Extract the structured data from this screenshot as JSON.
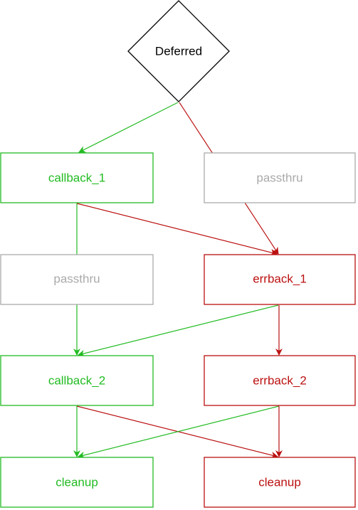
{
  "colors": {
    "success": "#22bb22",
    "error": "#bb1111",
    "inactive": "#aaaaaa",
    "neutral": "#000000",
    "background": "#ffffff"
  },
  "nodes": {
    "deferred": {
      "label": "Deferred"
    },
    "callback_1": {
      "label": "callback_1"
    },
    "passthru_right": {
      "label": "passthru"
    },
    "passthru_left": {
      "label": "passthru"
    },
    "errback_1": {
      "label": "errback_1"
    },
    "callback_2": {
      "label": "callback_2"
    },
    "errback_2": {
      "label": "errback_2"
    },
    "cleanup_left": {
      "label": "cleanup"
    },
    "cleanup_right": {
      "label": "cleanup"
    }
  },
  "edges": [
    {
      "from": "deferred",
      "to": "callback_1",
      "kind": "success"
    },
    {
      "from": "deferred",
      "to": "errback_1",
      "kind": "error"
    },
    {
      "from": "callback_1",
      "to": "callback_2",
      "kind": "success"
    },
    {
      "from": "callback_1",
      "to": "errback_1",
      "kind": "error"
    },
    {
      "from": "errback_1",
      "to": "callback_2",
      "kind": "success"
    },
    {
      "from": "errback_1",
      "to": "errback_2",
      "kind": "error"
    },
    {
      "from": "callback_2",
      "to": "cleanup_left",
      "kind": "success"
    },
    {
      "from": "callback_2",
      "to": "cleanup_right",
      "kind": "error"
    },
    {
      "from": "errback_2",
      "to": "cleanup_left",
      "kind": "success"
    },
    {
      "from": "errback_2",
      "to": "cleanup_right",
      "kind": "error"
    }
  ]
}
